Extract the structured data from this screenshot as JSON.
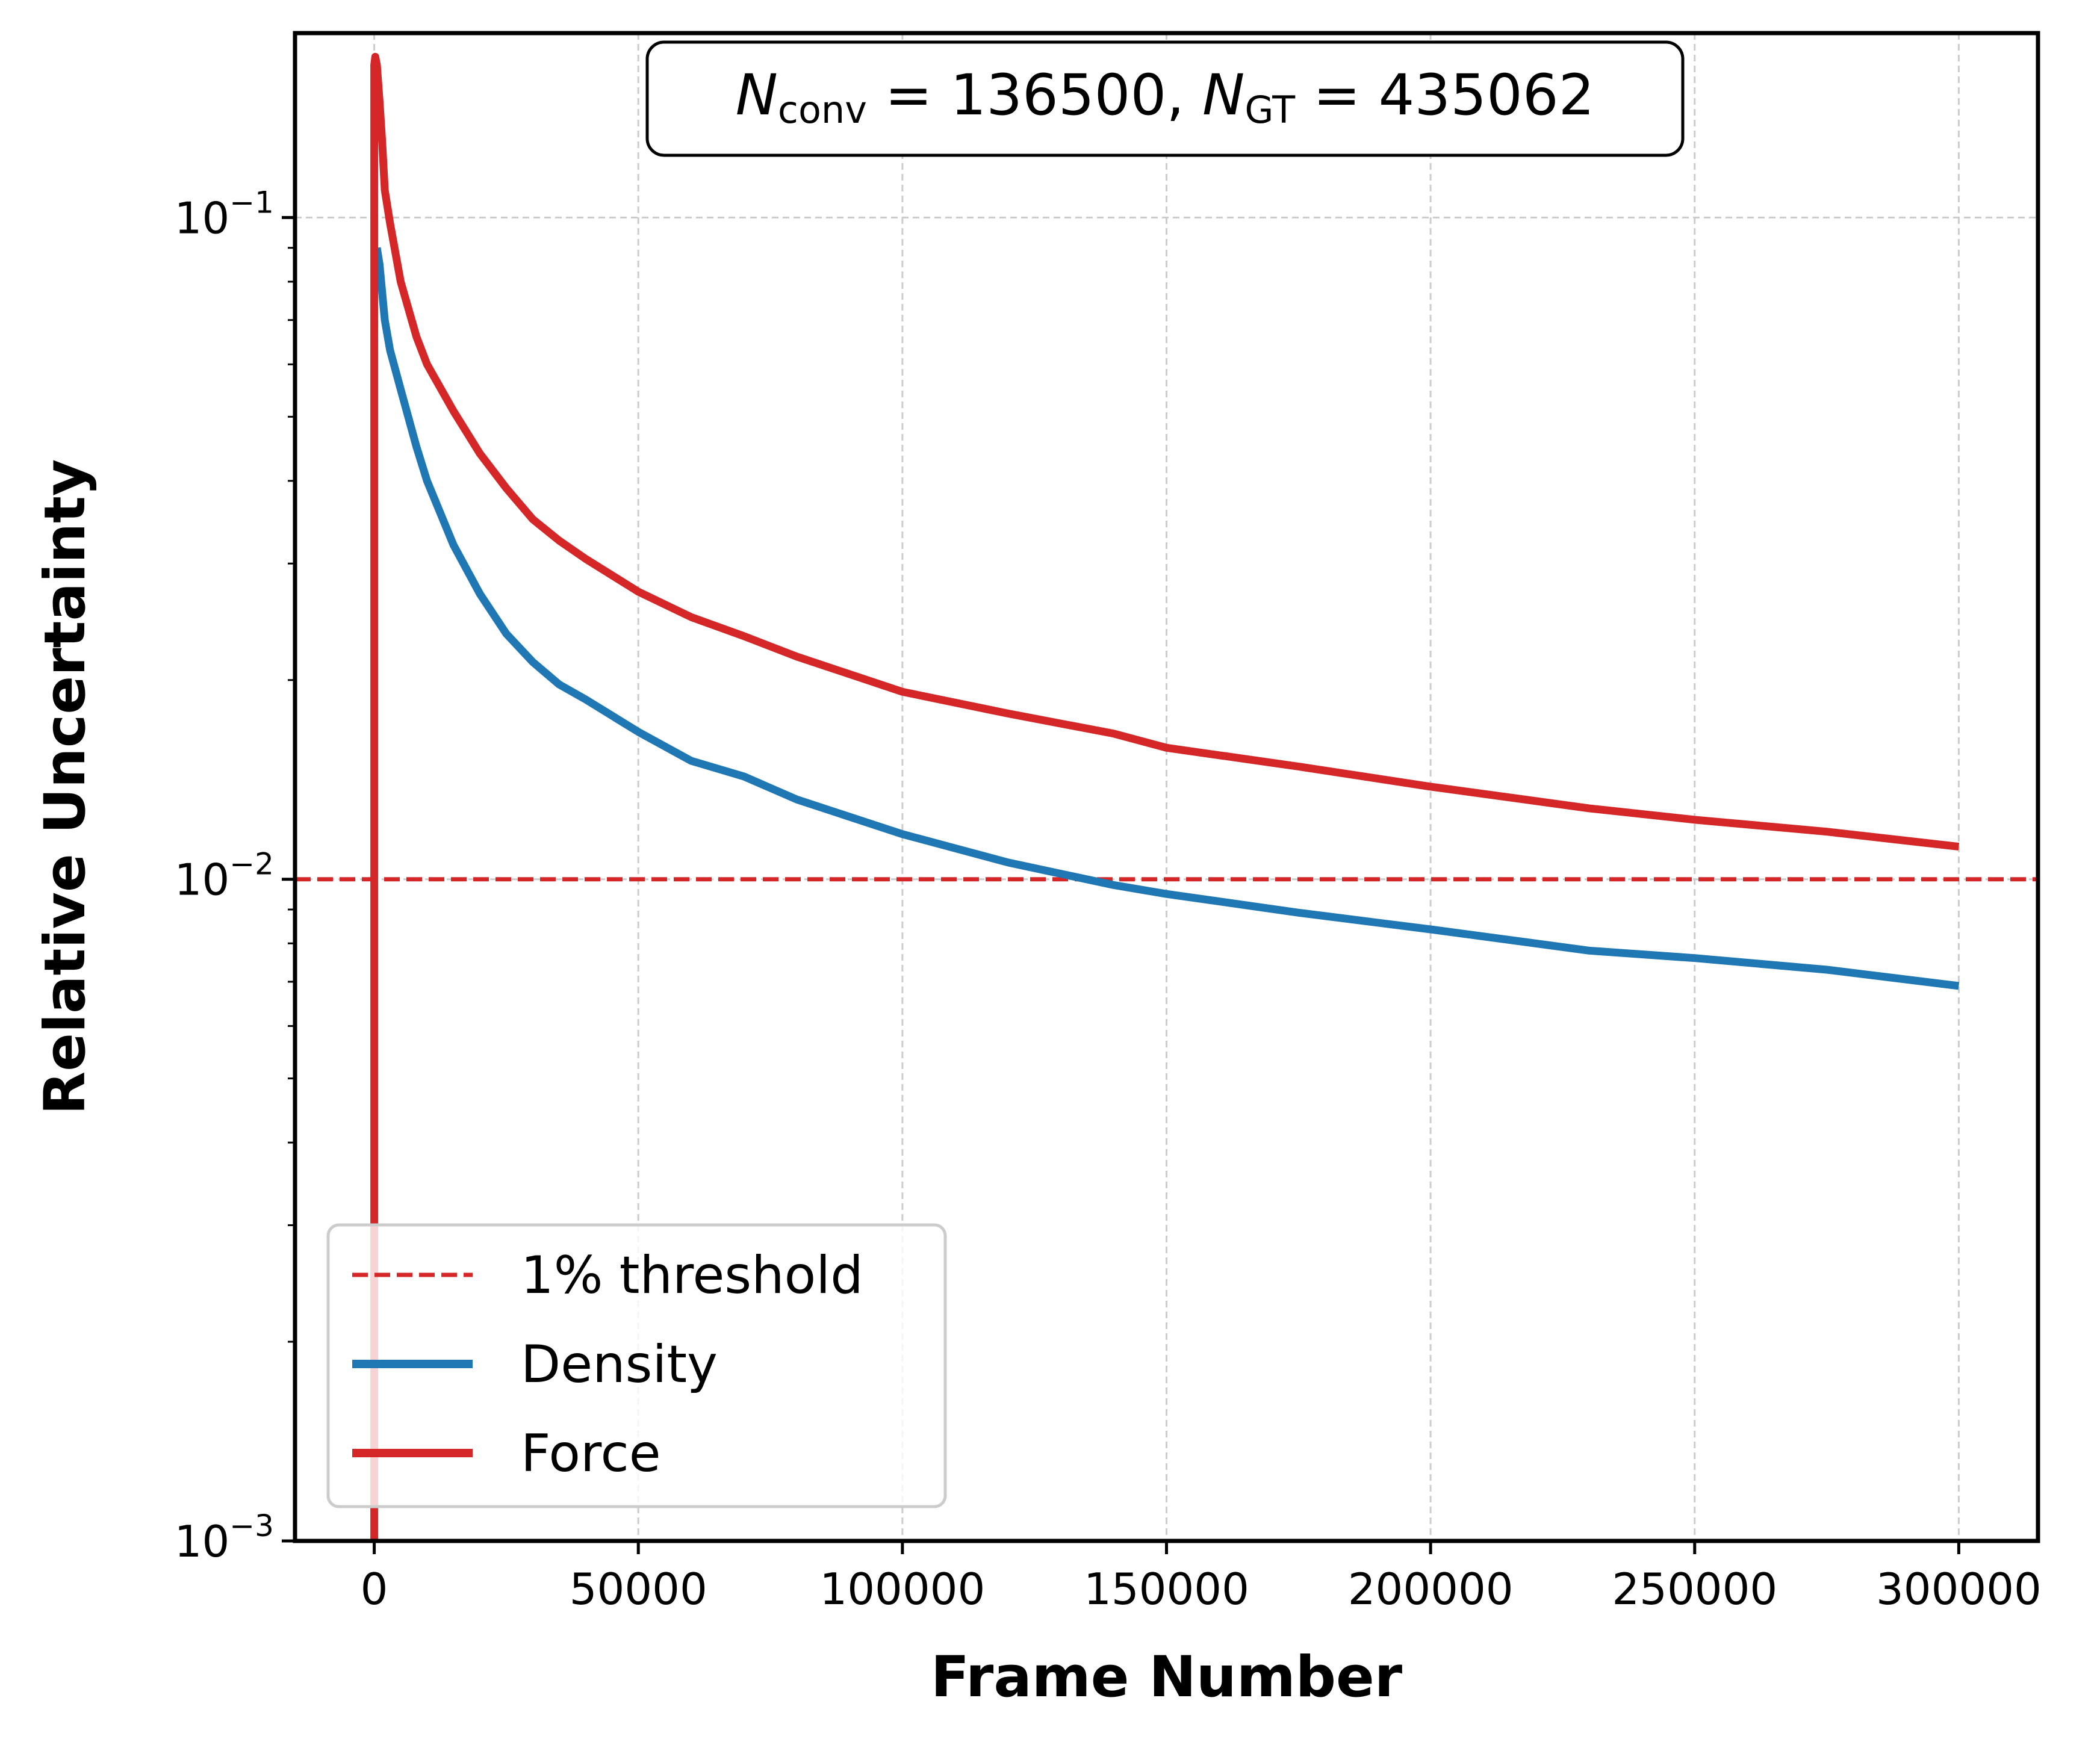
{
  "chart_data": {
    "type": "line",
    "xlabel": "Frame Number",
    "ylabel": "Relative Uncertainty",
    "xlim": [
      -15000,
      315000
    ],
    "ylim": [
      0.001,
      0.19
    ],
    "yscale": "log",
    "grid": true,
    "legend_placement": "lower-left",
    "x_ticks": [
      0,
      50000,
      100000,
      150000,
      200000,
      250000,
      300000
    ],
    "x_tick_labels": [
      "0",
      "50000",
      "100000",
      "150000",
      "200000",
      "250000",
      "300000"
    ],
    "y_ticks": [
      {
        "value": 0.1,
        "base": "10",
        "exp": "−1"
      },
      {
        "value": 0.01,
        "base": "10",
        "exp": "−2"
      },
      {
        "value": 0.001,
        "base": "10",
        "exp": "−3"
      }
    ],
    "annotation": {
      "n1_sym": "N",
      "n1_sub": "conv",
      "n1_val": " = 136500, ",
      "n2_sym": "N",
      "n2_sub": "GT",
      "n2_val": " = 435062"
    },
    "threshold": {
      "name": "1% threshold",
      "value": 0.01,
      "color": "#d62728"
    },
    "series": [
      {
        "name": "Density",
        "color": "#1f77b4",
        "x": [
          500,
          1000,
          2000,
          3000,
          5000,
          8000,
          10000,
          15000,
          20000,
          25000,
          30000,
          35000,
          40000,
          50000,
          60000,
          70000,
          80000,
          100000,
          120000,
          140000,
          150000,
          175000,
          200000,
          230000,
          250000,
          275000,
          300000
        ],
        "y": [
          0.09,
          0.085,
          0.07,
          0.063,
          0.055,
          0.045,
          0.04,
          0.032,
          0.027,
          0.0235,
          0.0213,
          0.0197,
          0.0187,
          0.0167,
          0.0151,
          0.0143,
          0.0132,
          0.0117,
          0.0106,
          0.0098,
          0.0095,
          0.0089,
          0.0084,
          0.0078,
          0.0076,
          0.0073,
          0.0069
        ]
      },
      {
        "name": "Force",
        "color": "#d62728",
        "x": [
          0,
          0,
          200,
          500,
          1000,
          1500,
          2000,
          3000,
          5000,
          8000,
          10000,
          15000,
          20000,
          25000,
          30000,
          35000,
          40000,
          50000,
          60000,
          70000,
          80000,
          100000,
          120000,
          140000,
          150000,
          175000,
          200000,
          230000,
          250000,
          275000,
          300000
        ],
        "y": [
          0.001,
          0.17,
          0.175,
          0.17,
          0.15,
          0.13,
          0.11,
          0.098,
          0.08,
          0.066,
          0.06,
          0.051,
          0.044,
          0.039,
          0.035,
          0.0325,
          0.0305,
          0.0272,
          0.0249,
          0.0233,
          0.0217,
          0.0192,
          0.0178,
          0.0166,
          0.0158,
          0.0148,
          0.0138,
          0.0128,
          0.0123,
          0.0118,
          0.0112
        ]
      }
    ]
  }
}
